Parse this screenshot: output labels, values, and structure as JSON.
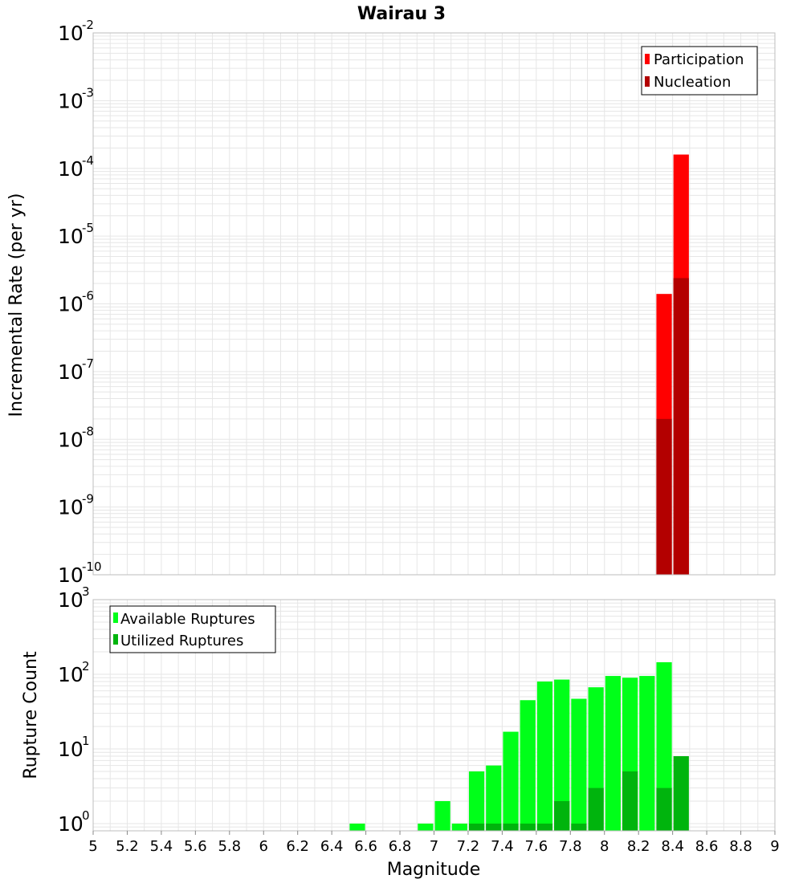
{
  "colors": {
    "participation": "#ff0000",
    "nucleation": "#b30000",
    "available": "#00ff19",
    "utilized": "#00b40d",
    "grid": "#e6e6e6",
    "frame": "#bdbdbd"
  },
  "chart_data": [
    {
      "type": "bar",
      "title": "Wairau 3",
      "ylabel": "Incremental Rate (per yr)",
      "xlabel": "",
      "xlim": [
        5,
        9
      ],
      "ylim": [
        1e-10,
        0.01
      ],
      "log_y": true,
      "grid": true,
      "legend_position": "top-right",
      "bar_width": 0.1,
      "ytick_exponents": [
        -10,
        -9,
        -8,
        -7,
        -6,
        -5,
        -4,
        -3,
        -2
      ],
      "series": [
        {
          "name": "Participation",
          "color_key": "participation",
          "x": [
            8.35,
            8.45
          ],
          "values": [
            1.4e-06,
            0.00016
          ]
        },
        {
          "name": "Nucleation",
          "color_key": "nucleation",
          "x": [
            8.35,
            8.45
          ],
          "values": [
            2e-08,
            2.4e-06
          ]
        }
      ]
    },
    {
      "type": "bar",
      "title": "",
      "ylabel": "Rupture Count",
      "xlabel": "Magnitude",
      "xlim": [
        5,
        9
      ],
      "ylim": [
        0.8,
        1000
      ],
      "log_y": true,
      "grid": true,
      "legend_position": "top-left",
      "bar_width": 0.1,
      "ytick_exponents": [
        0,
        1,
        2,
        3
      ],
      "xticks": [
        "5",
        "5.2",
        "5.4",
        "5.6",
        "5.8",
        "6",
        "6.2",
        "6.4",
        "6.6",
        "6.8",
        "7",
        "7.2",
        "7.4",
        "7.6",
        "7.8",
        "8",
        "8.2",
        "8.4",
        "8.6",
        "8.8",
        "9"
      ],
      "series": [
        {
          "name": "Available Ruptures",
          "color_key": "available",
          "x": [
            6.55,
            6.95,
            7.05,
            7.15,
            7.25,
            7.35,
            7.45,
            7.55,
            7.65,
            7.75,
            7.85,
            7.95,
            8.05,
            8.15,
            8.25,
            8.35
          ],
          "values": [
            1,
            1,
            2,
            1,
            5,
            6,
            17,
            45,
            80,
            85,
            47,
            67,
            95,
            90,
            95,
            145
          ]
        },
        {
          "name": "Utilized Ruptures",
          "color_key": "utilized",
          "x": [
            7.25,
            7.35,
            7.45,
            7.55,
            7.65,
            7.75,
            7.85,
            7.95,
            8.15,
            8.35,
            8.45
          ],
          "values": [
            1,
            1,
            1,
            1,
            1,
            2,
            1,
            3,
            5,
            3,
            8
          ]
        }
      ]
    }
  ]
}
